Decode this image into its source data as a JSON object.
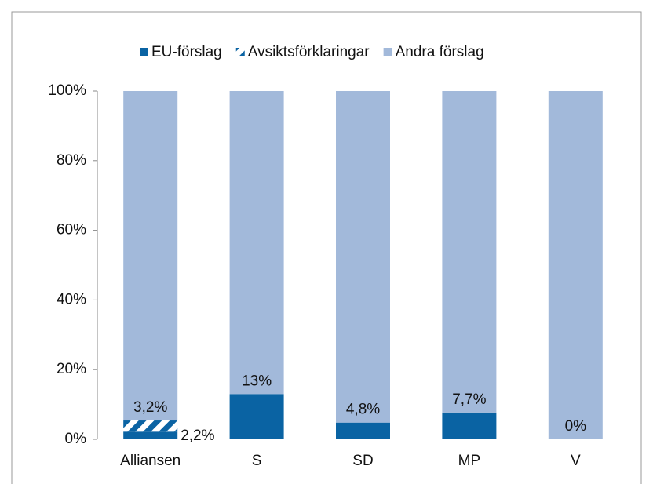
{
  "chart_data": {
    "type": "stacked_bar",
    "categories": [
      "Alliansen",
      "S",
      "SD",
      "MP",
      "V"
    ],
    "series": [
      {
        "name": "EU-förslag",
        "color": "#0a63a3",
        "values": [
          2.2,
          13,
          4.8,
          7.7,
          0
        ],
        "value_labels": [
          "2,2%",
          "13%",
          "4,8%",
          "7,7%",
          "0%"
        ]
      },
      {
        "name": "Avsiktsförklaringar",
        "color": "#0a63a3",
        "pattern": "hatch",
        "values": [
          3.2,
          0,
          0,
          0,
          0
        ],
        "value_labels": [
          "3,2%",
          null,
          null,
          null,
          null
        ]
      },
      {
        "name": "Andra förslag",
        "color": "#a2b9da",
        "values": [
          94.6,
          87,
          95.2,
          92.3,
          100
        ]
      }
    ],
    "ylim": [
      0,
      100
    ],
    "yticks": [
      {
        "value": 0,
        "label": "0%"
      },
      {
        "value": 20,
        "label": "20%"
      },
      {
        "value": 40,
        "label": "40%"
      },
      {
        "value": 60,
        "label": "60%"
      },
      {
        "value": 80,
        "label": "80%"
      },
      {
        "value": 100,
        "label": "100%"
      }
    ],
    "legend": "top"
  }
}
